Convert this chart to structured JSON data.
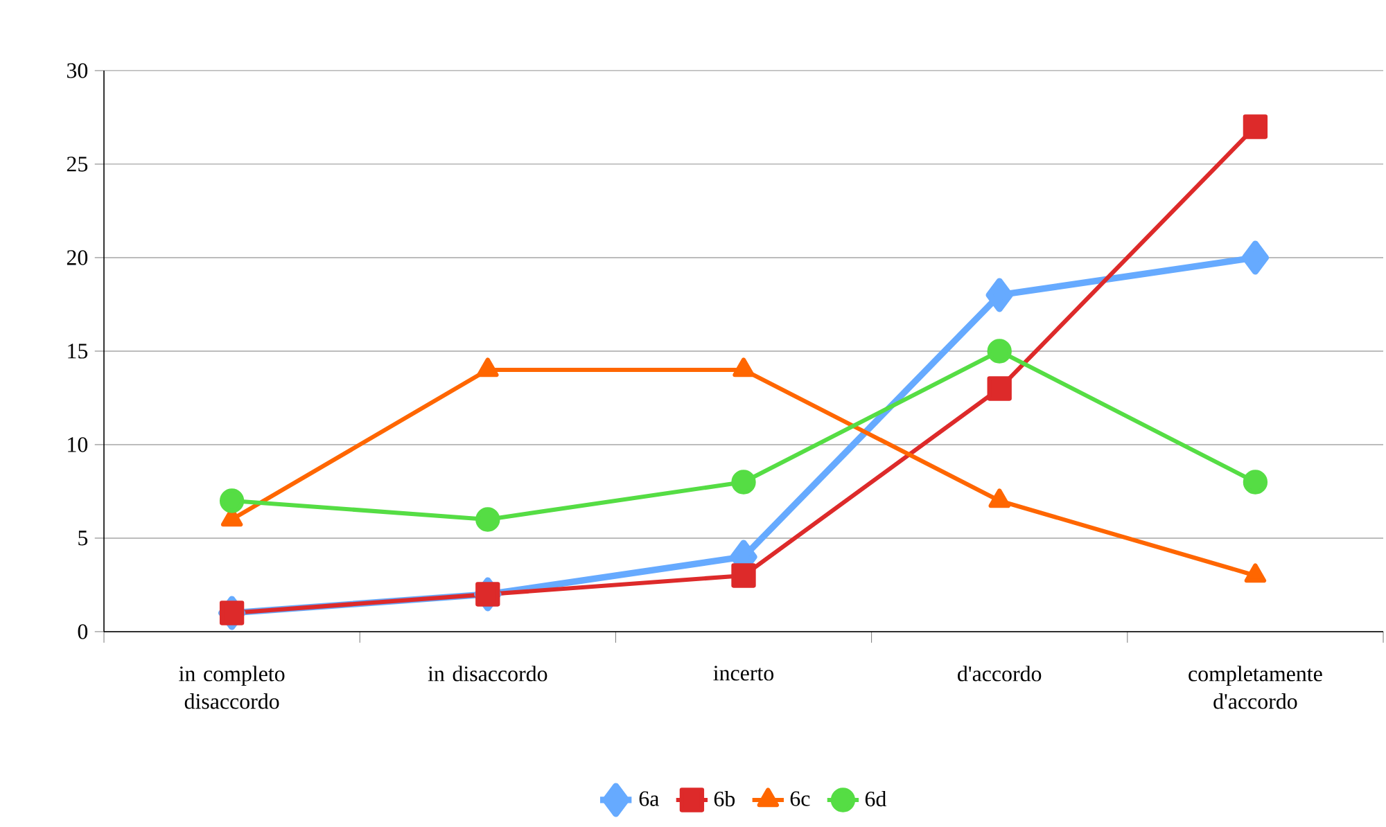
{
  "chart_data": {
    "type": "line",
    "categories": [
      "in completo disaccordo",
      "in disaccordo",
      "incerto",
      "d'accordo",
      "completamente d'accordo"
    ],
    "series": [
      {
        "name": "6a",
        "color": "#66aaff",
        "marker": "diamond",
        "values": [
          1,
          2,
          4,
          18,
          20
        ]
      },
      {
        "name": "6b",
        "color": "#dd2a2a",
        "marker": "square",
        "values": [
          1,
          2,
          3,
          13,
          27
        ]
      },
      {
        "name": "6c",
        "color": "#ff6600",
        "marker": "triangle",
        "values": [
          6,
          14,
          14,
          7,
          3
        ]
      },
      {
        "name": "6d",
        "color": "#55dd44",
        "marker": "circle",
        "values": [
          7,
          6,
          8,
          15,
          8
        ]
      }
    ],
    "ylim": [
      0,
      30
    ],
    "yticks": [
      0,
      5,
      10,
      15,
      20,
      25,
      30
    ],
    "grid": "y",
    "legend": "bottom",
    "line_style": "solid"
  }
}
